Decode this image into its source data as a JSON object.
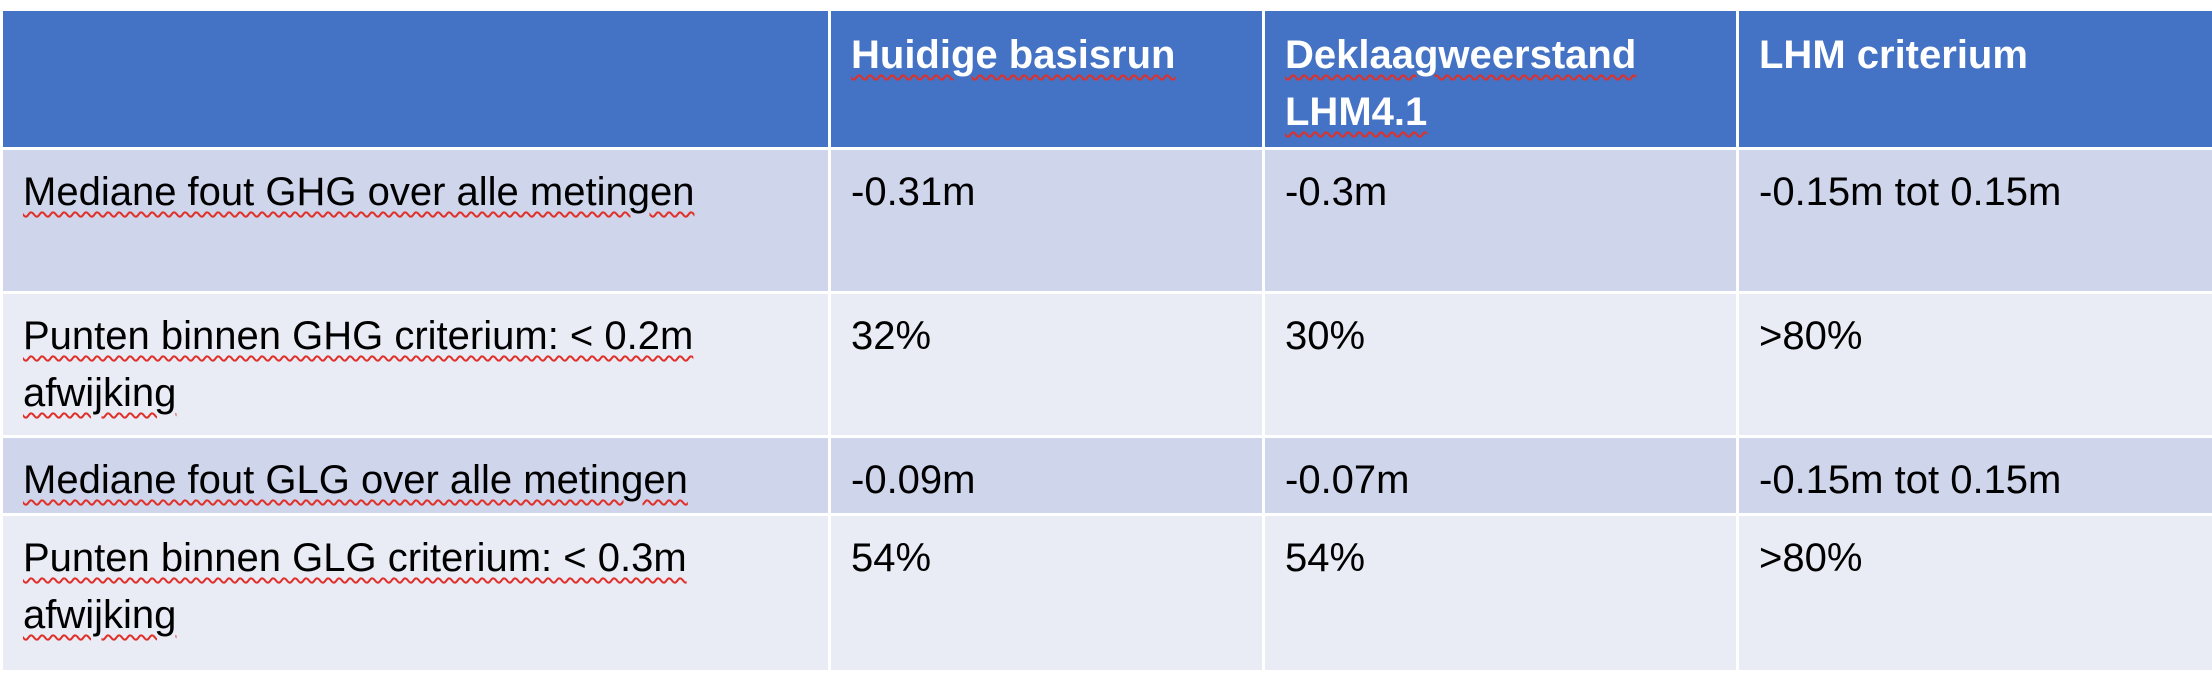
{
  "table": {
    "headers": [
      "",
      "Huidige basisrun",
      "Deklaagweerstand LHM4.1",
      "LHM criterium"
    ],
    "rows": [
      {
        "label": "Mediane fout GHG over alle metingen",
        "cells": [
          "-0.31m",
          "-0.3m",
          "-0.15m tot 0.15m"
        ]
      },
      {
        "label": "Punten binnen GHG criterium: < 0.2m afwijking",
        "cells": [
          "32%",
          "30%",
          ">80%"
        ]
      },
      {
        "label": "Mediane fout GLG over alle metingen",
        "cells": [
          "-0.09m",
          "-0.07m",
          "-0.15m tot 0.15m"
        ]
      },
      {
        "label": "Punten binnen GLG criterium: < 0.3m afwijking",
        "cells": [
          "54%",
          "54%",
          ">80%"
        ]
      }
    ]
  },
  "colors": {
    "header_bg": "#4472c4",
    "row_dark": "#cfd5ea",
    "row_light": "#e9ebf5",
    "spellcheck_underline": "#e0302a"
  }
}
